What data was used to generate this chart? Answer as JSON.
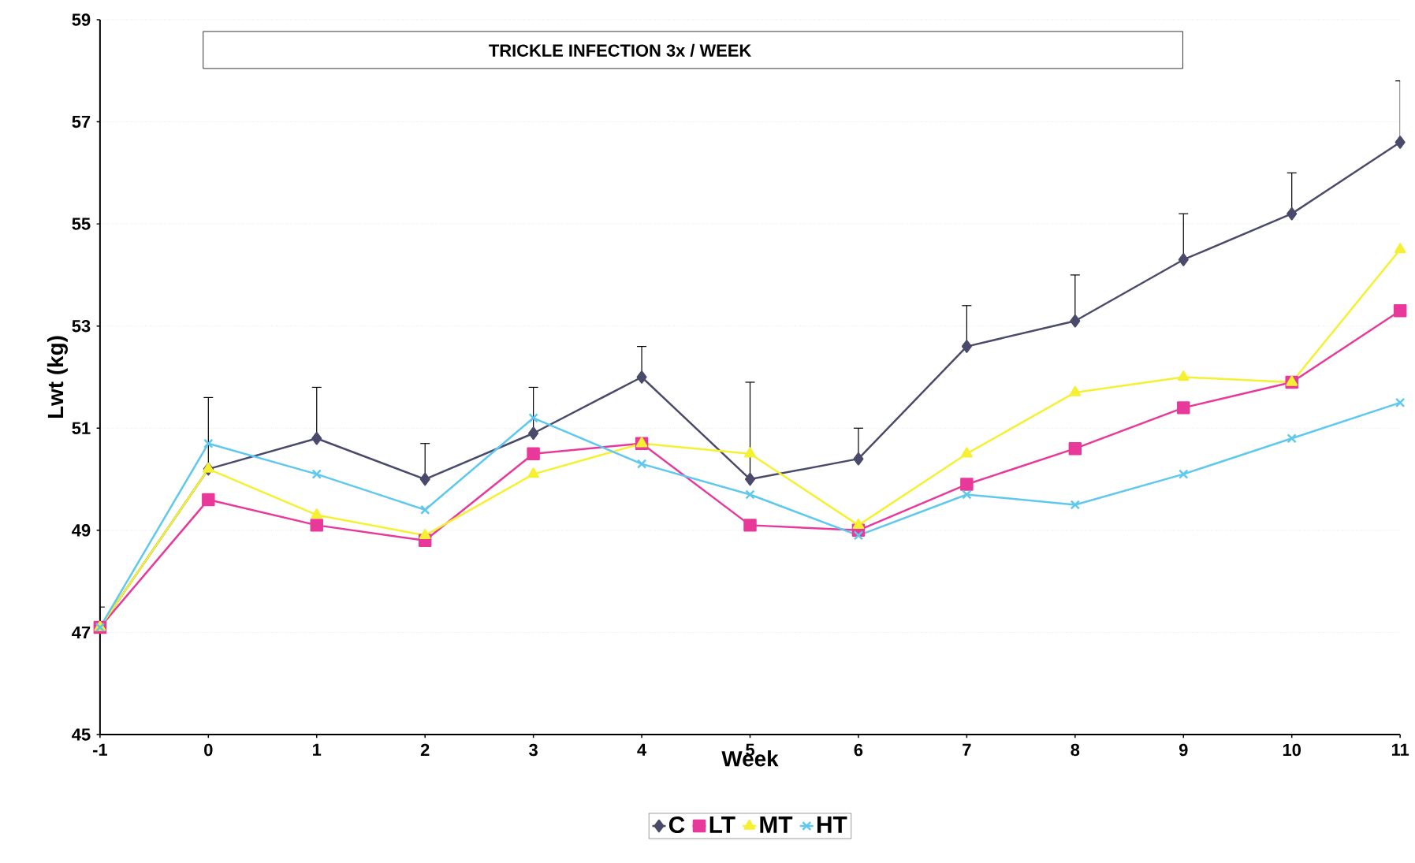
{
  "chart_data": {
    "type": "line",
    "xlabel": "Week",
    "ylabel": "Lwt (kg)",
    "annotations": [
      "TRICKLE INFECTION 3x / WEEK"
    ],
    "x": [
      -1,
      0,
      1,
      2,
      3,
      4,
      5,
      6,
      7,
      8,
      9,
      10,
      11
    ],
    "xlim": [
      -1,
      11
    ],
    "xticks": [
      -1,
      0,
      1,
      2,
      3,
      4,
      5,
      6,
      7,
      8,
      9,
      10,
      11
    ],
    "ylim": [
      45,
      59
    ],
    "yticks": [
      45,
      47,
      49,
      51,
      53,
      55,
      57,
      59
    ],
    "grid": "y",
    "legend": "bottom",
    "series": [
      {
        "name": "C",
        "color": "#4a4a6a",
        "marker": "diamond",
        "values": [
          47.1,
          50.2,
          50.8,
          50.0,
          50.9,
          52.0,
          50.0,
          50.4,
          52.6,
          53.1,
          54.3,
          55.2,
          56.6
        ],
        "errors": [
          [
            47.1,
            47.5
          ],
          [
            50.2,
            51.6
          ],
          [
            50.8,
            51.8
          ],
          [
            50.0,
            50.7
          ],
          [
            50.9,
            51.8
          ],
          [
            52.0,
            52.6
          ],
          [
            50.0,
            51.9
          ],
          [
            50.4,
            51.0
          ],
          [
            52.6,
            53.4
          ],
          [
            53.1,
            54.0
          ],
          [
            54.3,
            55.2
          ],
          [
            55.2,
            56.0
          ],
          [
            56.6,
            57.8
          ]
        ]
      },
      {
        "name": "LT",
        "color": "#e8399a",
        "marker": "square",
        "values": [
          47.1,
          49.6,
          49.1,
          48.8,
          50.5,
          50.7,
          49.1,
          49.0,
          49.9,
          50.6,
          51.4,
          51.9,
          53.3
        ]
      },
      {
        "name": "MT",
        "color": "#f5f032",
        "marker": "triangle",
        "values": [
          47.1,
          50.2,
          49.3,
          48.9,
          50.1,
          50.7,
          50.5,
          49.1,
          50.5,
          51.7,
          52.0,
          51.9,
          54.5
        ]
      },
      {
        "name": "HT",
        "color": "#5fc8ef",
        "marker": "cross",
        "values": [
          47.1,
          50.7,
          50.1,
          49.4,
          51.2,
          50.3,
          49.7,
          48.9,
          49.7,
          49.5,
          50.1,
          50.8,
          51.5
        ]
      }
    ]
  }
}
